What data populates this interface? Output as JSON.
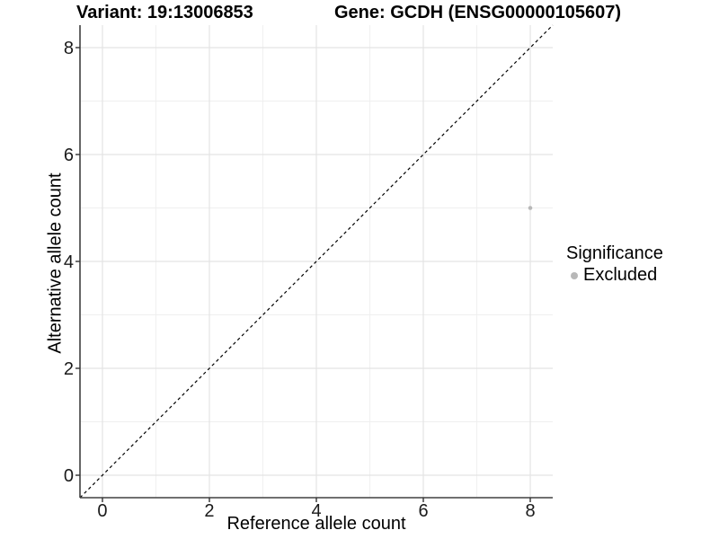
{
  "title": {
    "variant": "Variant: 19:13006853",
    "gene": "Gene: GCDH (ENSG00000105607)"
  },
  "axes": {
    "x_label": "Reference allele count",
    "y_label": "Alternative allele count"
  },
  "legend": {
    "title": "Significance",
    "entries": [
      {
        "label": "Excluded",
        "color": "#b8b8b8"
      }
    ]
  },
  "chart_data": {
    "type": "scatter",
    "title": "Variant: 19:13006853   Gene: GCDH (ENSG00000105607)",
    "xlabel": "Reference allele count",
    "ylabel": "Alternative allele count",
    "xlim": [
      -0.42,
      8.42
    ],
    "ylim": [
      -0.42,
      8.42
    ],
    "xticks": [
      0,
      2,
      4,
      6,
      8
    ],
    "yticks": [
      0,
      2,
      4,
      6,
      8
    ],
    "x_minor_ticks": [
      1,
      3,
      5,
      7
    ],
    "y_minor_ticks": [
      1,
      3,
      5,
      7
    ],
    "grid": "major and minor gridlines on white panel",
    "legend_position": "right",
    "series": [
      {
        "name": "Excluded",
        "points": [
          {
            "x": 8,
            "y": 5
          }
        ],
        "color": "#b8b8b8"
      }
    ],
    "reference_line": {
      "type": "identity",
      "slope": 1,
      "intercept": 0,
      "style": "dashed",
      "color": "#000000"
    }
  },
  "colors": {
    "background": "#ffffff",
    "grid_major": "#e4e4e4",
    "grid_minor": "#efefef",
    "axis_line": "#404040",
    "tick_mark": "#333333",
    "tick_label": "#1a1a1a",
    "point": "#b8b8b8",
    "reference_line": "#000000"
  }
}
